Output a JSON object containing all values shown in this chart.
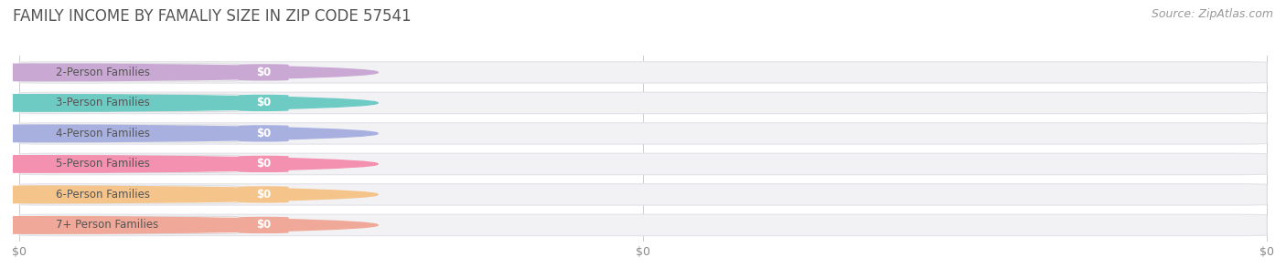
{
  "title": "FAMILY INCOME BY FAMALIY SIZE IN ZIP CODE 57541",
  "source": "Source: ZipAtlas.com",
  "categories": [
    "2-Person Families",
    "3-Person Families",
    "4-Person Families",
    "5-Person Families",
    "6-Person Families",
    "7+ Person Families"
  ],
  "values": [
    0,
    0,
    0,
    0,
    0,
    0
  ],
  "bar_colors": [
    "#c9a8d4",
    "#6ecbc4",
    "#a8b0e0",
    "#f490b0",
    "#f5c48a",
    "#f0a898"
  ],
  "bar_bg_facecolor": "#f2f2f5",
  "bar_bg_edgecolor": "#e2e2e8",
  "value_labels": [
    "$0",
    "$0",
    "$0",
    "$0",
    "$0",
    "$0"
  ],
  "x_tick_labels": [
    "$0",
    "$0",
    "$0"
  ],
  "title_color": "#555555",
  "source_color": "#999999",
  "title_fontsize": 12,
  "label_fontsize": 8.5,
  "value_fontsize": 8.5,
  "source_fontsize": 9,
  "background_color": "#ffffff"
}
